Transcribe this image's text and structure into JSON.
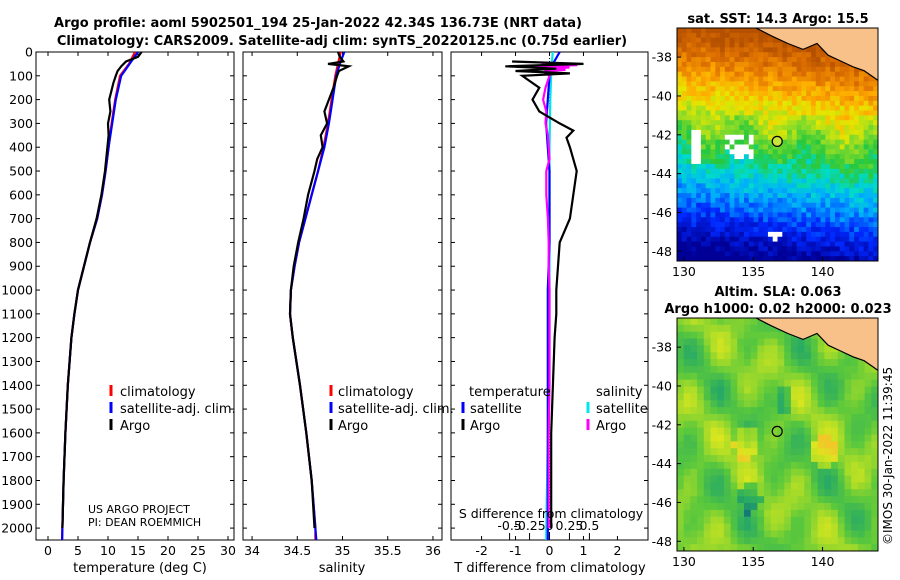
{
  "title": {
    "line1": "Argo profile: aoml 5902501_194 25-Jan-2022 42.34S 136.73E (NRT data)",
    "line2": "Climatology: CARS2009. Satellite-adj clim: synTS_20220125.nc (0.75d earlier)"
  },
  "watermark": "©IMOS 30-Jan-2022 11:39:45",
  "credit": [
    "US ARGO PROJECT",
    "PI: DEAN ROEMMICH"
  ],
  "colors": {
    "climatology": "#ff0000",
    "satellite": "#0000ff",
    "argo": "#000000",
    "satellite_s": "#00e5ee",
    "argo_s": "#ff00ff"
  },
  "chart_data": [
    {
      "id": "temperature",
      "type": "line",
      "xlabel": "temperature (deg C)",
      "ylabel": "",
      "xlim": [
        -2,
        31
      ],
      "ylim": [
        0,
        2050
      ],
      "xticks": [
        0,
        5,
        10,
        15,
        20,
        25,
        30
      ],
      "xtick_labels": [
        "0",
        "5",
        "10",
        "15",
        "20",
        "25",
        "30"
      ],
      "yticks": [
        0,
        100,
        200,
        300,
        400,
        500,
        600,
        700,
        800,
        900,
        1000,
        1100,
        1200,
        1300,
        1400,
        1500,
        1600,
        1700,
        1800,
        1900,
        2000
      ],
      "legend": [
        "climatology",
        "satellite-adj. clim.",
        "Argo"
      ],
      "series": [
        {
          "name": "climatology",
          "depth": [
            0,
            50,
            100,
            200,
            300,
            400,
            500,
            600,
            700,
            800,
            900,
            1000,
            1100,
            1200,
            1400,
            1600,
            1800,
            2000,
            2050
          ],
          "values": [
            14.5,
            13.5,
            12.0,
            11.2,
            10.6,
            10.1,
            9.6,
            9.0,
            8.2,
            7.0,
            6.0,
            5.0,
            4.4,
            3.9,
            3.3,
            2.9,
            2.6,
            2.4,
            2.35
          ]
        },
        {
          "name": "satellite-adj. clim.",
          "depth": [
            0,
            50,
            100,
            200,
            300,
            400,
            500,
            600,
            700,
            800,
            900,
            1000,
            1100,
            1200,
            1400,
            1600,
            1800,
            2000,
            2050
          ],
          "values": [
            15.0,
            13.6,
            12.2,
            11.3,
            10.7,
            10.1,
            9.6,
            9.0,
            8.2,
            7.0,
            6.0,
            5.0,
            4.4,
            3.9,
            3.3,
            2.9,
            2.6,
            2.4,
            2.35
          ]
        },
        {
          "name": "Argo",
          "depth": [
            0,
            20,
            40,
            60,
            80,
            100,
            130,
            160,
            200,
            250,
            300,
            350,
            400,
            500,
            600,
            700,
            800,
            900,
            1000,
            1100,
            1200,
            1400,
            1600,
            1800,
            2000
          ],
          "values": [
            15.6,
            15.0,
            13.0,
            12.2,
            11.6,
            11.3,
            10.9,
            10.6,
            10.2,
            10.4,
            10.0,
            10.1,
            9.9,
            9.5,
            8.9,
            8.1,
            7.0,
            6.0,
            5.0,
            4.4,
            3.9,
            3.3,
            2.9,
            2.6,
            2.4
          ]
        }
      ]
    },
    {
      "id": "salinity",
      "type": "line",
      "xlabel": "salinity",
      "ylabel": "",
      "xlim": [
        33.9,
        36.1
      ],
      "ylim": [
        0,
        2050
      ],
      "xticks": [
        34,
        34.5,
        35,
        35.5,
        36
      ],
      "xtick_labels": [
        "34",
        "34.5",
        "35",
        "35.5",
        "36"
      ],
      "legend": [
        "climatology",
        "satellite-adj. clim.",
        "Argo"
      ],
      "series": [
        {
          "name": "climatology",
          "depth": [
            0,
            50,
            100,
            200,
            300,
            400,
            500,
            600,
            700,
            800,
            900,
            1000,
            1100,
            1200,
            1400,
            1600,
            1800,
            2000,
            2050
          ],
          "values": [
            34.98,
            34.95,
            34.92,
            34.88,
            34.84,
            34.79,
            34.73,
            34.66,
            34.59,
            34.52,
            34.47,
            34.43,
            34.42,
            34.45,
            34.53,
            34.6,
            34.66,
            34.7,
            34.7
          ]
        },
        {
          "name": "satellite-adj. clim.",
          "depth": [
            0,
            50,
            100,
            200,
            300,
            400,
            500,
            600,
            700,
            800,
            900,
            1000,
            1100,
            1200,
            1400,
            1600,
            1800,
            2000,
            2050
          ],
          "values": [
            35.02,
            34.97,
            34.93,
            34.89,
            34.85,
            34.8,
            34.73,
            34.66,
            34.59,
            34.52,
            34.47,
            34.43,
            34.42,
            34.45,
            34.53,
            34.6,
            34.66,
            34.7,
            34.71
          ]
        },
        {
          "name": "Argo",
          "depth": [
            0,
            20,
            40,
            50,
            60,
            80,
            100,
            150,
            200,
            250,
            300,
            350,
            400,
            450,
            500,
            600,
            700,
            800,
            900,
            1000,
            1100,
            1200,
            1400,
            1600,
            1800,
            2000
          ],
          "values": [
            34.95,
            34.97,
            35.01,
            34.84,
            35.07,
            34.96,
            34.94,
            34.9,
            34.85,
            34.8,
            34.83,
            34.76,
            34.78,
            34.72,
            34.69,
            34.62,
            34.57,
            34.51,
            34.46,
            34.43,
            34.42,
            34.45,
            34.53,
            34.6,
            34.66,
            34.69
          ]
        }
      ]
    },
    {
      "id": "difference",
      "type": "line",
      "xlabel": "T difference from climatology",
      "xlabel_top": "S difference from climatology",
      "xlim": [
        -2.9,
        2.9
      ],
      "ylim": [
        0,
        2050
      ],
      "xticks": [
        -2,
        -1,
        0,
        1,
        2
      ],
      "xtick_labels": [
        "-2",
        "-1",
        "0",
        "1",
        "2"
      ],
      "sticks": [
        -0.5,
        -0.25,
        0,
        0.25,
        0.5
      ],
      "stick_labels": [
        "-0.5",
        "-0.25",
        "0",
        "0.25",
        "0.5"
      ],
      "legend_left_title": "temperature",
      "legend_right_title": "salinity",
      "legend_left": [
        "satellite",
        "Argo"
      ],
      "legend_right": [
        "satellite",
        "Argo"
      ],
      "series": [
        {
          "name": "T satellite",
          "depth": [
            0,
            50,
            100,
            200,
            300,
            400,
            500,
            600,
            800,
            1000,
            1200,
            1400,
            1600,
            1800,
            2000,
            2050
          ],
          "values": [
            0.3,
            0.1,
            0.0,
            -0.05,
            -0.1,
            -0.05,
            0.0,
            0.0,
            0.0,
            -0.05,
            -0.05,
            -0.05,
            -0.05,
            -0.05,
            -0.05,
            -0.05
          ]
        },
        {
          "name": "T Argo",
          "depth": [
            40,
            50,
            60,
            70,
            80,
            90,
            100,
            120,
            150,
            200,
            250,
            300,
            330,
            360,
            400,
            500,
            600,
            700,
            800,
            900,
            1000,
            1100,
            1200,
            1400,
            1600,
            1800,
            2000
          ],
          "values": [
            -1.1,
            1.0,
            -1.3,
            0.2,
            -1.0,
            0.6,
            -0.8,
            -0.6,
            -0.3,
            -0.5,
            -0.3,
            0.3,
            0.7,
            0.5,
            0.6,
            0.8,
            0.7,
            0.6,
            0.3,
            0.25,
            0.2,
            0.2,
            0.15,
            0.1,
            0.05,
            0.05,
            0.05
          ]
        },
        {
          "name": "S satellite",
          "depth": [
            0,
            50,
            100,
            200,
            400,
            600,
            800,
            1000,
            1200,
            1400,
            1600,
            1800,
            2000,
            2050
          ],
          "values": [
            0.04,
            0.03,
            0.02,
            0.01,
            0.0,
            0.0,
            0.0,
            0.0,
            0.0,
            -0.01,
            -0.02,
            -0.03,
            -0.04,
            -0.04
          ]
        },
        {
          "name": "S Argo",
          "depth": [
            50,
            55,
            60,
            65,
            70,
            75,
            80,
            90,
            100,
            150,
            200,
            250,
            300,
            350,
            400,
            450,
            500,
            600,
            700,
            800,
            900,
            1000,
            1100,
            1200,
            1400,
            1600,
            1800,
            2000
          ],
          "values": [
            -0.1,
            0.35,
            -0.2,
            0.25,
            -0.1,
            0.2,
            -0.05,
            -0.05,
            0.0,
            -0.05,
            -0.08,
            -0.04,
            -0.05,
            -0.02,
            -0.01,
            0.0,
            -0.04,
            -0.04,
            -0.02,
            -0.01,
            -0.01,
            0.0,
            0.0,
            0.0,
            0.0,
            -0.01,
            -0.01,
            -0.01
          ]
        }
      ]
    },
    {
      "id": "sst-map",
      "type": "heatmap",
      "title": "sat. SST: 14.3 Argo: 15.5",
      "xlim": [
        129.5,
        144
      ],
      "ylim": [
        -48.5,
        -36.5
      ],
      "xticks": [
        130,
        135,
        140
      ],
      "yticks": [
        -38,
        -40,
        -42,
        -44,
        -46,
        -48
      ],
      "xtick_labels": [
        "130",
        "135",
        "140"
      ],
      "ytick_labels": [
        "-38",
        "-40",
        "-42",
        "-44",
        "-46",
        "-48"
      ],
      "marker": {
        "lon": 136.73,
        "lat": -42.34
      }
    },
    {
      "id": "sla-map",
      "type": "heatmap",
      "title": "Altim. SLA: 0.063",
      "subtitle": "Argo h1000: 0.02 h2000: 0.023",
      "xlim": [
        129.5,
        144
      ],
      "ylim": [
        -48.5,
        -36.5
      ],
      "xticks": [
        130,
        135,
        140
      ],
      "yticks": [
        -38,
        -40,
        -42,
        -44,
        -46,
        -48
      ],
      "xtick_labels": [
        "130",
        "135",
        "140"
      ],
      "ytick_labels": [
        "-38",
        "-40",
        "-42",
        "-44",
        "-46",
        "-48"
      ],
      "marker": {
        "lon": 136.73,
        "lat": -42.34
      }
    }
  ]
}
